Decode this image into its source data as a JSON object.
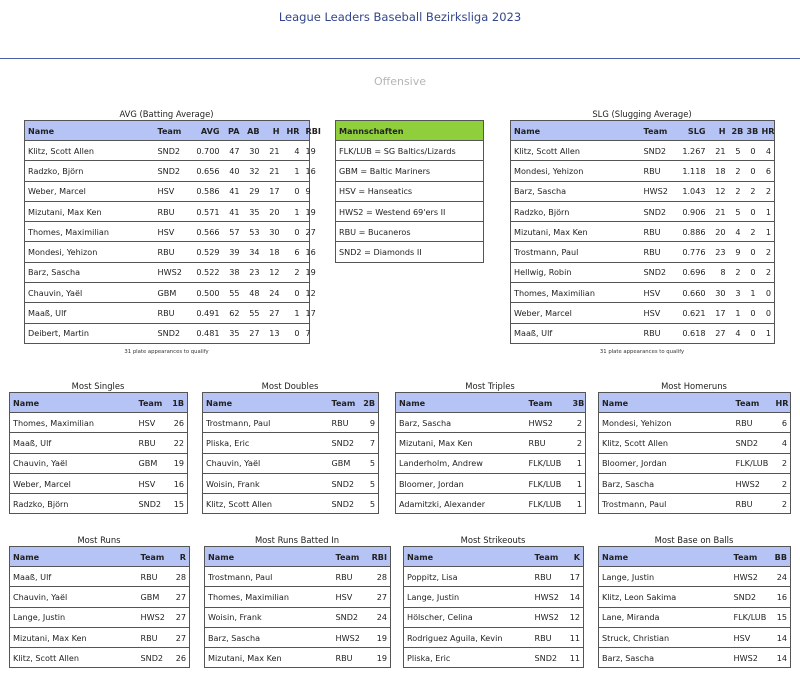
{
  "page_title": "League Leaders Baseball Bezirksliga 2023",
  "section_title": "Offensive",
  "qualify_note": "31 plate appearances to qualify",
  "avg": {
    "title": "AVG (Batting Average)",
    "headers": [
      "Name",
      "Team",
      "AVG",
      "PA",
      "AB",
      "H",
      "HR",
      "RBI"
    ],
    "rows": [
      [
        "Klitz, Scott Allen",
        "SND2",
        "0.700",
        "47",
        "30",
        "21",
        "4",
        "19"
      ],
      [
        "Radzko, Björn",
        "SND2",
        "0.656",
        "40",
        "32",
        "21",
        "1",
        "16"
      ],
      [
        "Weber, Marcel",
        "HSV",
        "0.586",
        "41",
        "29",
        "17",
        "0",
        "9"
      ],
      [
        "Mizutani, Max Ken",
        "RBU",
        "0.571",
        "41",
        "35",
        "20",
        "1",
        "19"
      ],
      [
        "Thomes, Maximilian",
        "HSV",
        "0.566",
        "57",
        "53",
        "30",
        "0",
        "27"
      ],
      [
        "Mondesi, Yehizon",
        "RBU",
        "0.529",
        "39",
        "34",
        "18",
        "6",
        "16"
      ],
      [
        "Barz, Sascha",
        "HWS2",
        "0.522",
        "38",
        "23",
        "12",
        "2",
        "19"
      ],
      [
        "Chauvin, Yaël",
        "GBM",
        "0.500",
        "55",
        "48",
        "24",
        "0",
        "12"
      ],
      [
        "Maaß, Ulf",
        "RBU",
        "0.491",
        "62",
        "55",
        "27",
        "1",
        "17"
      ],
      [
        "Deibert, Martin",
        "SND2",
        "0.481",
        "35",
        "27",
        "13",
        "0",
        "7"
      ]
    ]
  },
  "mannschaften": {
    "header": "Mannschaften",
    "rows": [
      "FLK/LUB = SG Baltics/Lizards",
      "GBM = Baltic Mariners",
      "HSV = Hanseatics",
      "HWS2 = Westend 69'ers II",
      "RBU = Bucaneros",
      "SND2 = Diamonds II"
    ]
  },
  "slg": {
    "title": "SLG (Slugging Average)",
    "headers": [
      "Name",
      "Team",
      "SLG",
      "H",
      "2B",
      "3B",
      "HR"
    ],
    "rows": [
      [
        "Klitz, Scott Allen",
        "SND2",
        "1.267",
        "21",
        "5",
        "0",
        "4"
      ],
      [
        "Mondesi, Yehizon",
        "RBU",
        "1.118",
        "18",
        "2",
        "0",
        "6"
      ],
      [
        "Barz, Sascha",
        "HWS2",
        "1.043",
        "12",
        "2",
        "2",
        "2"
      ],
      [
        "Radzko, Björn",
        "SND2",
        "0.906",
        "21",
        "5",
        "0",
        "1"
      ],
      [
        "Mizutani, Max Ken",
        "RBU",
        "0.886",
        "20",
        "4",
        "2",
        "1"
      ],
      [
        "Trostmann, Paul",
        "RBU",
        "0.776",
        "23",
        "9",
        "0",
        "2"
      ],
      [
        "Hellwig, Robin",
        "SND2",
        "0.696",
        "8",
        "2",
        "0",
        "2"
      ],
      [
        "Thomes, Maximilian",
        "HSV",
        "0.660",
        "30",
        "3",
        "1",
        "0"
      ],
      [
        "Weber, Marcel",
        "HSV",
        "0.621",
        "17",
        "1",
        "0",
        "0"
      ],
      [
        "Maaß, Ulf",
        "RBU",
        "0.618",
        "27",
        "4",
        "0",
        "1"
      ]
    ]
  },
  "singles": {
    "title": "Most Singles",
    "headers": [
      "Name",
      "Team",
      "1B"
    ],
    "rows": [
      [
        "Thomes, Maximilian",
        "HSV",
        "26"
      ],
      [
        "Maaß, Ulf",
        "RBU",
        "22"
      ],
      [
        "Chauvin, Yaël",
        "GBM",
        "19"
      ],
      [
        "Weber, Marcel",
        "HSV",
        "16"
      ],
      [
        "Radzko, Björn",
        "SND2",
        "15"
      ]
    ]
  },
  "doubles": {
    "title": "Most Doubles",
    "headers": [
      "Name",
      "Team",
      "2B"
    ],
    "rows": [
      [
        "Trostmann, Paul",
        "RBU",
        "9"
      ],
      [
        "Pliska, Eric",
        "SND2",
        "7"
      ],
      [
        "Chauvin, Yaël",
        "GBM",
        "5"
      ],
      [
        "Woisin, Frank",
        "SND2",
        "5"
      ],
      [
        "Klitz, Scott Allen",
        "SND2",
        "5"
      ]
    ]
  },
  "triples": {
    "title": "Most Triples",
    "headers": [
      "Name",
      "Team",
      "3B"
    ],
    "rows": [
      [
        "Barz, Sascha",
        "HWS2",
        "2"
      ],
      [
        "Mizutani, Max Ken",
        "RBU",
        "2"
      ],
      [
        "Landerholm, Andrew",
        "FLK/LUB",
        "1"
      ],
      [
        "Bloomer, Jordan",
        "FLK/LUB",
        "1"
      ],
      [
        "Adamitzki, Alexander",
        "FLK/LUB",
        "1"
      ]
    ]
  },
  "homeruns": {
    "title": "Most Homeruns",
    "headers": [
      "Name",
      "Team",
      "HR"
    ],
    "rows": [
      [
        "Mondesi, Yehizon",
        "RBU",
        "6"
      ],
      [
        "Klitz, Scott Allen",
        "SND2",
        "4"
      ],
      [
        "Bloomer, Jordan",
        "FLK/LUB",
        "2"
      ],
      [
        "Barz, Sascha",
        "HWS2",
        "2"
      ],
      [
        "Trostmann, Paul",
        "RBU",
        "2"
      ]
    ]
  },
  "runs": {
    "title": "Most Runs",
    "headers": [
      "Name",
      "Team",
      "R"
    ],
    "rows": [
      [
        "Maaß, Ulf",
        "RBU",
        "28"
      ],
      [
        "Chauvin, Yaël",
        "GBM",
        "27"
      ],
      [
        "Lange, Justin",
        "HWS2",
        "27"
      ],
      [
        "Mizutani, Max Ken",
        "RBU",
        "27"
      ],
      [
        "Klitz, Scott Allen",
        "SND2",
        "26"
      ]
    ]
  },
  "rbi": {
    "title": "Most Runs Batted In",
    "headers": [
      "Name",
      "Team",
      "RBI"
    ],
    "rows": [
      [
        "Trostmann, Paul",
        "RBU",
        "28"
      ],
      [
        "Thomes, Maximilian",
        "HSV",
        "27"
      ],
      [
        "Woisin, Frank",
        "SND2",
        "24"
      ],
      [
        "Barz, Sascha",
        "HWS2",
        "19"
      ],
      [
        "Mizutani, Max Ken",
        "RBU",
        "19"
      ]
    ]
  },
  "strikeouts": {
    "title": "Most Strikeouts",
    "headers": [
      "Name",
      "Team",
      "K"
    ],
    "rows": [
      [
        "Poppitz, Lisa",
        "RBU",
        "17"
      ],
      [
        "Lange, Justin",
        "HWS2",
        "14"
      ],
      [
        "Hölscher, Celina",
        "HWS2",
        "12"
      ],
      [
        "Rodriguez Aguila, Kevin",
        "RBU",
        "11"
      ],
      [
        "Pliska, Eric",
        "SND2",
        "11"
      ]
    ]
  },
  "walks": {
    "title": "Most Base on Balls",
    "headers": [
      "Name",
      "Team",
      "BB"
    ],
    "rows": [
      [
        "Lange, Justin",
        "HWS2",
        "24"
      ],
      [
        "Klitz, Leon Sakima",
        "SND2",
        "16"
      ],
      [
        "Lane, Miranda",
        "FLK/LUB",
        "15"
      ],
      [
        "Struck, Christian",
        "HSV",
        "14"
      ],
      [
        "Barz, Sascha",
        "HWS2",
        "14"
      ]
    ]
  }
}
